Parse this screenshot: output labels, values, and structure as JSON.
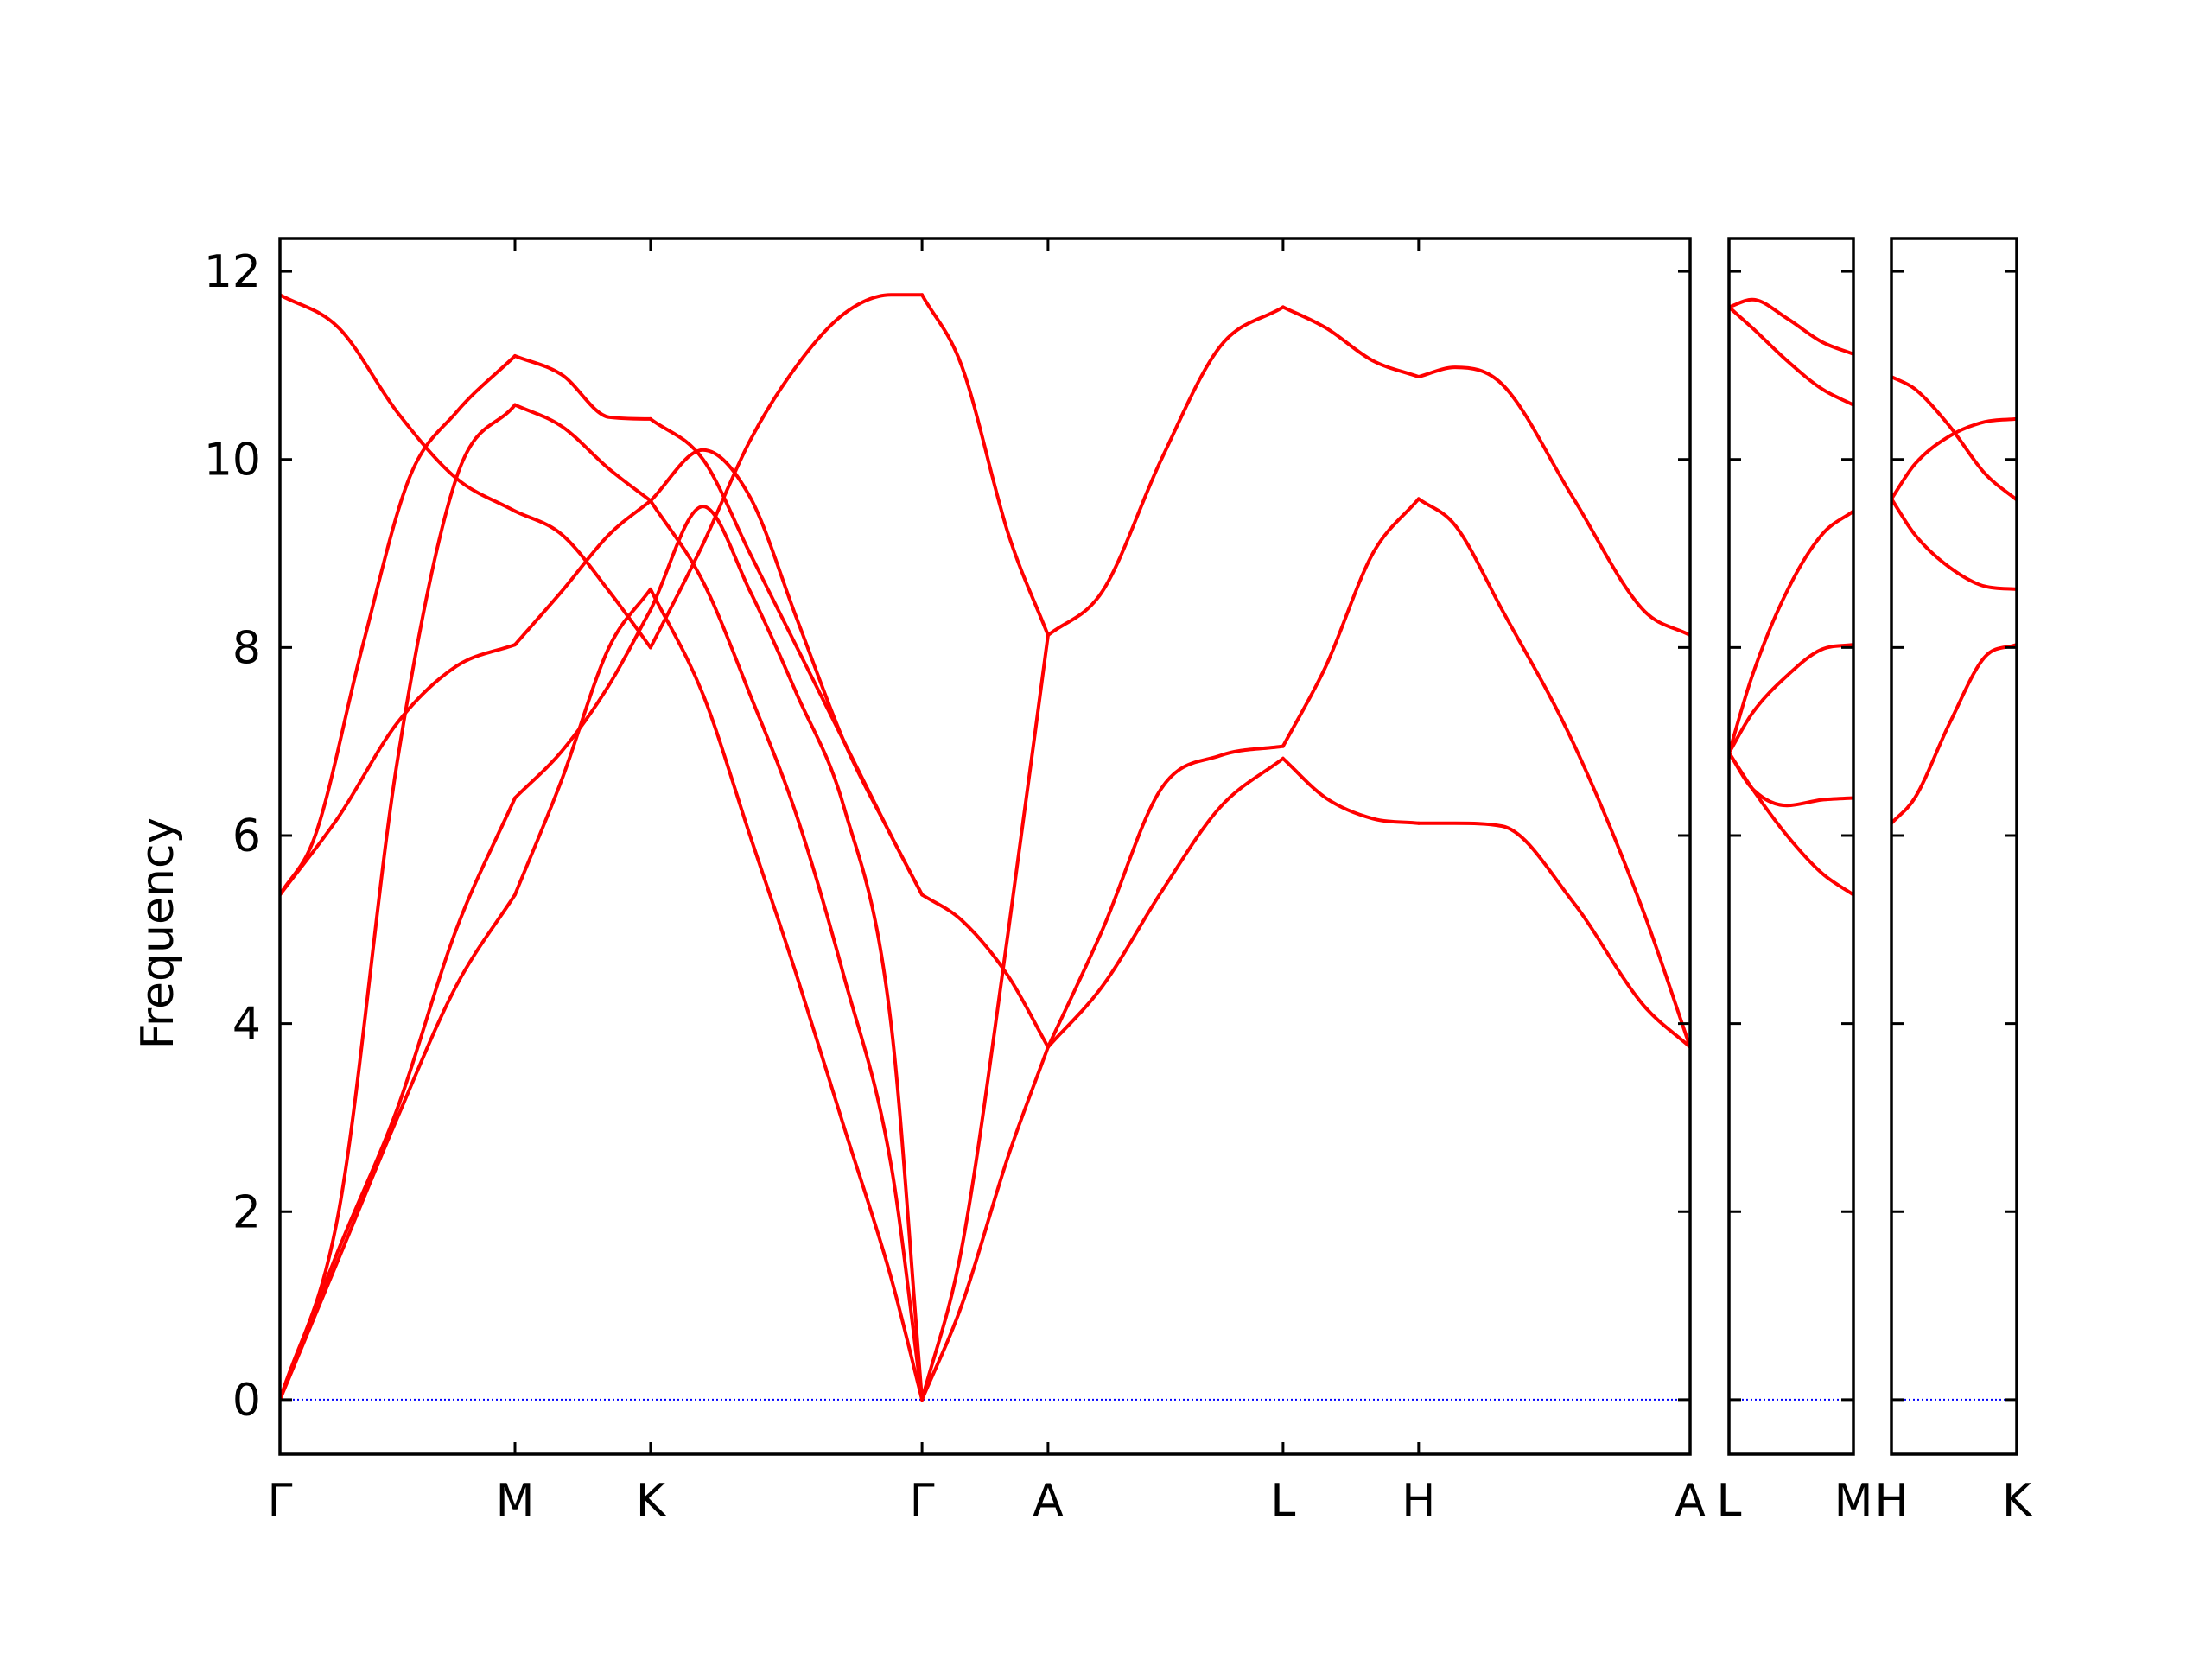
{
  "chart_data": {
    "type": "line",
    "title": "",
    "ylabel": "Frequency",
    "xlabel": "",
    "ylim": [
      -0.58,
      12.35
    ],
    "yticks": [
      0,
      2,
      4,
      6,
      8,
      10,
      12
    ],
    "grid": false,
    "zero_line": true,
    "colors": {
      "bands": "#ff0000",
      "zero_line": "#0000ff",
      "axes": "#000000"
    },
    "panels": [
      {
        "path": [
          {
            "label": "Γ",
            "x": 0.0
          },
          {
            "label": "M",
            "x": 1.0
          },
          {
            "label": "K",
            "x": 1.577
          },
          {
            "label": "Γ",
            "x": 2.732
          },
          {
            "label": "A",
            "x": 3.268
          },
          {
            "label": "L",
            "x": 4.268
          },
          {
            "label": "H",
            "x": 4.845
          },
          {
            "label": "A",
            "x": 6.0
          }
        ],
        "bands": [
          {
            "x": [
              0,
              0.25,
              0.5,
              0.75,
              1.0
            ],
            "y": [
              0,
              1.5,
              3.0,
              4.4,
              5.37
            ]
          },
          {
            "x": [
              1.0,
              1.2,
              1.4,
              1.577
            ],
            "y": [
              5.37,
              6.6,
              8.0,
              8.62
            ]
          },
          {
            "x": [
              1.577,
              1.8,
              2.0,
              2.2,
              2.4,
              2.6,
              2.732
            ],
            "y": [
              8.62,
              7.5,
              6.0,
              4.5,
              2.9,
              1.3,
              0
            ]
          },
          {
            "x": [
              0,
              0.25,
              0.5,
              0.75,
              1.0
            ],
            "y": [
              0,
              1.6,
              3.1,
              5.0,
              6.4
            ]
          },
          {
            "x": [
              1.0,
              1.2,
              1.4,
              1.577
            ],
            "y": [
              6.4,
              6.9,
              7.6,
              8.4
            ]
          },
          {
            "x": [
              1.577,
              1.8,
              2.0,
              2.2,
              2.4,
              2.6,
              2.732
            ],
            "y": [
              8.4,
              9.5,
              8.6,
              7.5,
              6.3,
              4.0,
              0
            ]
          },
          {
            "x": [
              0,
              0.15,
              0.35,
              0.55,
              0.75,
              1.0
            ],
            "y": [
              5.37,
              6.0,
              8.0,
              9.8,
              10.5,
              11.1
            ]
          },
          {
            "x": [
              1.0,
              1.2,
              1.4,
              1.577
            ],
            "y": [
              11.1,
              10.9,
              10.45,
              10.43
            ]
          },
          {
            "x": [
              1.577,
              1.8,
              2.0,
              2.2,
              2.4,
              2.6,
              2.732
            ],
            "y": [
              10.43,
              10.0,
              9.0,
              8.0,
              7.0,
              6.0,
              5.37
            ]
          },
          {
            "x": [
              0,
              0.25,
              0.5,
              0.75,
              1.0
            ],
            "y": [
              5.37,
              6.2,
              7.2,
              7.8,
              8.03
            ]
          },
          {
            "x": [
              1.0,
              1.2,
              1.4,
              1.577
            ],
            "y": [
              8.03,
              8.6,
              9.2,
              9.56
            ]
          },
          {
            "x": [
              1.577,
              1.8,
              2.0,
              2.2,
              2.4,
              2.6,
              2.732
            ],
            "y": [
              9.56,
              10.1,
              9.6,
              8.3,
              7.0,
              6.0,
              5.37
            ]
          },
          {
            "x": [
              0,
              0.25,
              0.5,
              0.75,
              1.0
            ],
            "y": [
              0,
              2.0,
              6.8,
              9.8,
              10.58
            ]
          },
          {
            "x": [
              1.0,
              1.2,
              1.4,
              1.577
            ],
            "y": [
              10.58,
              10.35,
              9.9,
              9.56
            ]
          },
          {
            "x": [
              1.577,
              1.8,
              2.0,
              2.2,
              2.4,
              2.6,
              2.732
            ],
            "y": [
              9.56,
              8.7,
              7.5,
              6.2,
              4.5,
              2.5,
              0
            ]
          },
          {
            "x": [
              0,
              0.25,
              0.5,
              0.75,
              1.0
            ],
            "y": [
              11.75,
              11.4,
              10.5,
              9.8,
              9.45
            ]
          },
          {
            "x": [
              1.0,
              1.2,
              1.4,
              1.577
            ],
            "y": [
              9.45,
              9.2,
              8.6,
              8.0
            ]
          },
          {
            "x": [
              1.577,
              1.8,
              2.0,
              2.2,
              2.4,
              2.6,
              2.732
            ],
            "y": [
              8.0,
              9.1,
              10.2,
              11.0,
              11.55,
              11.75,
              11.75
            ]
          },
          {
            "x": [
              2.732,
              2.9,
              3.1,
              3.268
            ],
            "y": [
              11.75,
              11.0,
              9.2,
              8.13
            ]
          },
          {
            "x": [
              2.732,
              2.9,
              3.1,
              3.268
            ],
            "y": [
              5.37,
              5.1,
              4.5,
              3.75
            ]
          },
          {
            "x": [
              2.732,
              2.9,
              3.1,
              3.268
            ],
            "y": [
              0,
              1.6,
              5.0,
              8.13
            ]
          },
          {
            "x": [
              2.732,
              2.9,
              3.1,
              3.268
            ],
            "y": [
              0,
              1.0,
              2.6,
              3.75
            ]
          },
          {
            "x": [
              3.268,
              3.5,
              3.75,
              4.0,
              4.268
            ],
            "y": [
              8.13,
              8.6,
              10.0,
              11.2,
              11.62
            ]
          },
          {
            "x": [
              4.268,
              4.45,
              4.65,
              4.845
            ],
            "y": [
              11.62,
              11.4,
              11.05,
              10.88
            ]
          },
          {
            "x": [
              4.845,
              5.0,
              5.2,
              5.5,
              5.8,
              6.0
            ],
            "y": [
              10.88,
              10.98,
              10.8,
              9.6,
              8.4,
              8.13
            ]
          },
          {
            "x": [
              3.268,
              3.5,
              3.75,
              4.0,
              4.268
            ],
            "y": [
              3.75,
              5.0,
              6.5,
              6.85,
              6.95
            ]
          },
          {
            "x": [
              4.268,
              4.45,
              4.65,
              4.845
            ],
            "y": [
              6.95,
              7.8,
              9.0,
              9.58
            ]
          },
          {
            "x": [
              4.845,
              5.0,
              5.2,
              5.5,
              5.8,
              6.0
            ],
            "y": [
              9.58,
              9.3,
              8.4,
              7.0,
              5.2,
              3.75
            ]
          },
          {
            "x": [
              3.268,
              3.5,
              3.75,
              4.0,
              4.268
            ],
            "y": [
              3.75,
              4.4,
              5.4,
              6.3,
              6.82
            ]
          },
          {
            "x": [
              4.268,
              4.45,
              4.65,
              4.845
            ],
            "y": [
              6.82,
              6.4,
              6.18,
              6.13
            ]
          },
          {
            "x": [
              4.845,
              5.0,
              5.2,
              5.5,
              5.8,
              6.0
            ],
            "y": [
              6.13,
              6.13,
              6.1,
              5.3,
              4.2,
              3.75
            ]
          }
        ]
      },
      {
        "path": [
          {
            "label": "L",
            "x": 0.0
          },
          {
            "label": "M",
            "x": 0.536
          }
        ],
        "bands": [
          {
            "x": [
              0,
              0.1,
              0.25,
              0.4,
              0.536
            ],
            "y": [
              11.62,
              11.7,
              11.5,
              11.25,
              11.12
            ]
          },
          {
            "x": [
              0,
              0.1,
              0.25,
              0.4,
              0.536
            ],
            "y": [
              11.62,
              11.4,
              11.05,
              10.75,
              10.58
            ]
          },
          {
            "x": [
              0,
              0.1,
              0.25,
              0.4,
              0.536
            ],
            "y": [
              6.88,
              7.7,
              8.6,
              9.2,
              9.45
            ]
          },
          {
            "x": [
              0,
              0.1,
              0.25,
              0.4,
              0.536
            ],
            "y": [
              6.88,
              7.3,
              7.7,
              7.98,
              8.03
            ]
          },
          {
            "x": [
              0,
              0.1,
              0.25,
              0.4,
              0.536
            ],
            "y": [
              6.88,
              6.5,
              6.32,
              6.38,
              6.4
            ]
          },
          {
            "x": [
              0,
              0.1,
              0.25,
              0.4,
              0.536
            ],
            "y": [
              6.88,
              6.5,
              6.0,
              5.6,
              5.37
            ]
          }
        ]
      },
      {
        "path": [
          {
            "label": "H",
            "x": 0.0
          },
          {
            "label": "K",
            "x": 0.536
          }
        ],
        "bands": [
          {
            "x": [
              0,
              0.1,
              0.25,
              0.4,
              0.536
            ],
            "y": [
              10.88,
              10.75,
              10.35,
              9.85,
              9.57
            ]
          },
          {
            "x": [
              0,
              0.1,
              0.25,
              0.4,
              0.536
            ],
            "y": [
              9.58,
              9.95,
              10.25,
              10.4,
              10.43
            ]
          },
          {
            "x": [
              0,
              0.1,
              0.25,
              0.4,
              0.536
            ],
            "y": [
              9.58,
              9.2,
              8.85,
              8.65,
              8.62
            ]
          },
          {
            "x": [
              0,
              0.1,
              0.25,
              0.4,
              0.536
            ],
            "y": [
              6.13,
              6.4,
              7.2,
              7.9,
              8.03
            ]
          }
        ]
      }
    ]
  }
}
